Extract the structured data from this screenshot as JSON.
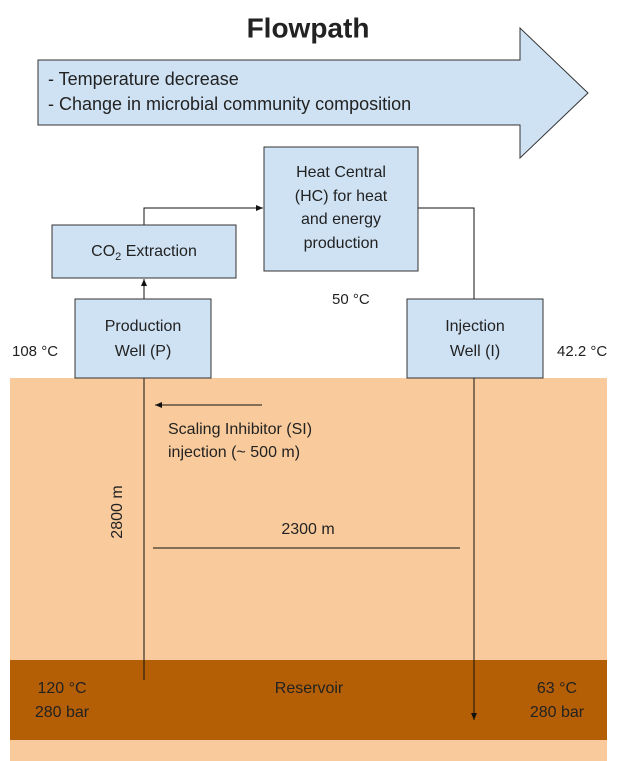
{
  "title": "Flowpath",
  "flow_arrow": {
    "lines": [
      "- Temperature decrease",
      "- Change in microbial community composition"
    ]
  },
  "nodes": {
    "heat_central": {
      "lines": [
        "Heat Central",
        "(HC) for heat",
        "and energy",
        "production"
      ]
    },
    "co2_extraction": {
      "prefix": "CO",
      "subscript": "2",
      "suffix": " Extraction"
    },
    "production_well": {
      "lines": [
        "Production",
        "Well (P)"
      ]
    },
    "injection_well": {
      "lines": [
        "Injection",
        "Well (I)"
      ]
    }
  },
  "labels": {
    "production_temp": "108 °C",
    "injection_temp": "42.2 °C",
    "return_temp": "50 °C",
    "scaling_inhibitor": [
      "Scaling Inhibitor (SI)",
      "injection (~ 500 m)"
    ],
    "depth": "2800 m",
    "distance": "2300 m",
    "reservoir": "Reservoir",
    "reservoir_left": [
      "120 °C",
      "280 bar"
    ],
    "reservoir_right": [
      "63 °C",
      "280 bar"
    ]
  }
}
